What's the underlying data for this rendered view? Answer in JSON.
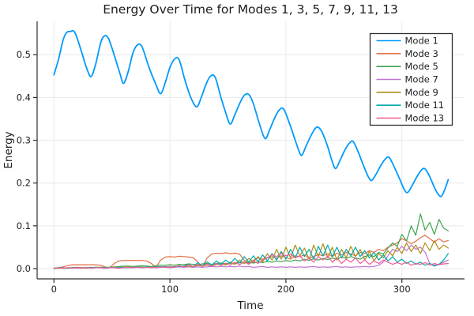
{
  "chart_data": {
    "type": "line",
    "title": "Energy Over Time for Modes 1, 3, 5, 7, 9, 11, 13",
    "xlabel": "Time",
    "ylabel": "Energy",
    "xlim": [
      -14.5,
      354
    ],
    "ylim": [
      -0.024,
      0.578
    ],
    "grid": true,
    "legend_position": "top-right",
    "xticks": [
      0,
      100,
      200,
      300
    ],
    "xtick_labels": [
      "0",
      "100",
      "200",
      "300"
    ],
    "yticks": [
      0.0,
      0.1,
      0.2,
      0.3,
      0.4,
      0.5
    ],
    "ytick_labels": [
      "0.0",
      "0.1",
      "0.2",
      "0.3",
      "0.4",
      "0.5"
    ],
    "series": [
      {
        "name": "Mode 1",
        "color": "#009AFA",
        "width": 1.8,
        "smooth": true,
        "points": [
          [
            0,
            0.453
          ],
          [
            4,
            0.49
          ],
          [
            8,
            0.535
          ],
          [
            11,
            0.552
          ],
          [
            14,
            0.554
          ],
          [
            18,
            0.552
          ],
          [
            24,
            0.505
          ],
          [
            28,
            0.47
          ],
          [
            32,
            0.449
          ],
          [
            36,
            0.478
          ],
          [
            40,
            0.525
          ],
          [
            43,
            0.543
          ],
          [
            47,
            0.538
          ],
          [
            53,
            0.49
          ],
          [
            57,
            0.455
          ],
          [
            60,
            0.433
          ],
          [
            64,
            0.46
          ],
          [
            68,
            0.503
          ],
          [
            72,
            0.523
          ],
          [
            76,
            0.518
          ],
          [
            82,
            0.47
          ],
          [
            88,
            0.43
          ],
          [
            92,
            0.409
          ],
          [
            96,
            0.435
          ],
          [
            100,
            0.47
          ],
          [
            104,
            0.49
          ],
          [
            108,
            0.488
          ],
          [
            113,
            0.44
          ],
          [
            118,
            0.4
          ],
          [
            123,
            0.378
          ],
          [
            127,
            0.4
          ],
          [
            131,
            0.43
          ],
          [
            135,
            0.45
          ],
          [
            139,
            0.447
          ],
          [
            144,
            0.4
          ],
          [
            148,
            0.365
          ],
          [
            152,
            0.338
          ],
          [
            156,
            0.36
          ],
          [
            160,
            0.385
          ],
          [
            164,
            0.405
          ],
          [
            168,
            0.407
          ],
          [
            172,
            0.385
          ],
          [
            177,
            0.34
          ],
          [
            182,
            0.304
          ],
          [
            186,
            0.325
          ],
          [
            190,
            0.35
          ],
          [
            194,
            0.37
          ],
          [
            198,
            0.373
          ],
          [
            203,
            0.34
          ],
          [
            208,
            0.3
          ],
          [
            212,
            0.27
          ],
          [
            214,
            0.266
          ],
          [
            218,
            0.29
          ],
          [
            223,
            0.318
          ],
          [
            227,
            0.331
          ],
          [
            231,
            0.32
          ],
          [
            236,
            0.285
          ],
          [
            240,
            0.25
          ],
          [
            243,
            0.234
          ],
          [
            247,
            0.255
          ],
          [
            251,
            0.278
          ],
          [
            255,
            0.294
          ],
          [
            258,
            0.297
          ],
          [
            262,
            0.275
          ],
          [
            267,
            0.24
          ],
          [
            271,
            0.215
          ],
          [
            274,
            0.206
          ],
          [
            278,
            0.222
          ],
          [
            282,
            0.242
          ],
          [
            286,
            0.257
          ],
          [
            289,
            0.26
          ],
          [
            293,
            0.24
          ],
          [
            298,
            0.21
          ],
          [
            302,
            0.185
          ],
          [
            305,
            0.178
          ],
          [
            309,
            0.195
          ],
          [
            313,
            0.215
          ],
          [
            317,
            0.231
          ],
          [
            320,
            0.233
          ],
          [
            324,
            0.215
          ],
          [
            328,
            0.19
          ],
          [
            331,
            0.175
          ],
          [
            334,
            0.169
          ],
          [
            337,
            0.185
          ],
          [
            340,
            0.208
          ]
        ]
      },
      {
        "name": "Mode 3",
        "color": "#E36F47",
        "width": 1.2,
        "smooth": false,
        "t0": 0,
        "dt": 4,
        "values": [
          0.001,
          0.002,
          0.004,
          0.007,
          0.009,
          0.009,
          0.009,
          0.009,
          0.009,
          0.009,
          0.008,
          0.004,
          0.002,
          0.012,
          0.018,
          0.019,
          0.019,
          0.019,
          0.019,
          0.019,
          0.018,
          0.012,
          0.003,
          0.02,
          0.027,
          0.028,
          0.027,
          0.029,
          0.028,
          0.027,
          0.026,
          0.015,
          0.004,
          0.025,
          0.034,
          0.036,
          0.035,
          0.037,
          0.035,
          0.036,
          0.034,
          0.02,
          0.012,
          0.02,
          0.025,
          0.022,
          0.026,
          0.028,
          0.024,
          0.03,
          0.026,
          0.022,
          0.03,
          0.028,
          0.032,
          0.025,
          0.028,
          0.033,
          0.03,
          0.035,
          0.028,
          0.036,
          0.032,
          0.038,
          0.034,
          0.03,
          0.038,
          0.035,
          0.042,
          0.038,
          0.045,
          0.042,
          0.05,
          0.055,
          0.06,
          0.07,
          0.065,
          0.058,
          0.064,
          0.072,
          0.078,
          0.07,
          0.062,
          0.07,
          0.062,
          0.066
        ]
      },
      {
        "name": "Mode 5",
        "color": "#3DA44E",
        "width": 1.2,
        "smooth": false,
        "t0": 0,
        "dt": 4,
        "values": [
          0.0,
          0.001,
          0.001,
          0.001,
          0.002,
          0.002,
          0.002,
          0.001,
          0.002,
          0.003,
          0.003,
          0.002,
          0.003,
          0.004,
          0.005,
          0.006,
          0.006,
          0.005,
          0.006,
          0.007,
          0.006,
          0.005,
          0.007,
          0.008,
          0.008,
          0.009,
          0.008,
          0.01,
          0.009,
          0.011,
          0.01,
          0.009,
          0.011,
          0.012,
          0.01,
          0.012,
          0.013,
          0.011,
          0.013,
          0.012,
          0.014,
          0.013,
          0.015,
          0.013,
          0.016,
          0.014,
          0.017,
          0.015,
          0.018,
          0.016,
          0.019,
          0.017,
          0.02,
          0.018,
          0.022,
          0.019,
          0.023,
          0.02,
          0.024,
          0.021,
          0.025,
          0.022,
          0.027,
          0.024,
          0.028,
          0.025,
          0.022,
          0.028,
          0.032,
          0.028,
          0.038,
          0.034,
          0.048,
          0.06,
          0.052,
          0.08,
          0.065,
          0.1,
          0.078,
          0.128,
          0.09,
          0.108,
          0.08,
          0.115,
          0.095,
          0.088
        ]
      },
      {
        "name": "Mode 7",
        "color": "#C371D2",
        "width": 1.2,
        "smooth": false,
        "t0": 0,
        "dt": 4,
        "values": [
          0.001,
          0.001,
          0.002,
          0.001,
          0.002,
          0.001,
          0.002,
          0.002,
          0.001,
          0.002,
          0.002,
          0.001,
          0.002,
          0.002,
          0.003,
          0.002,
          0.003,
          0.002,
          0.003,
          0.002,
          0.003,
          0.003,
          0.002,
          0.003,
          0.003,
          0.002,
          0.003,
          0.004,
          0.003,
          0.004,
          0.003,
          0.004,
          0.003,
          0.004,
          0.005,
          0.004,
          0.005,
          0.004,
          0.005,
          0.004,
          0.006,
          0.004,
          0.005,
          0.003,
          0.004,
          0.005,
          0.003,
          0.004,
          0.003,
          0.004,
          0.003,
          0.004,
          0.003,
          0.004,
          0.003,
          0.004,
          0.005,
          0.003,
          0.004,
          0.003,
          0.004,
          0.005,
          0.003,
          0.004,
          0.003,
          0.004,
          0.004,
          0.005,
          0.004,
          0.005,
          0.008,
          0.015,
          0.03,
          0.045,
          0.04,
          0.052,
          0.042,
          0.055,
          0.045,
          0.05,
          0.038,
          0.012,
          0.008,
          0.01,
          0.015,
          0.02
        ]
      },
      {
        "name": "Mode 9",
        "color": "#AC8E18",
        "width": 1.2,
        "smooth": false,
        "t0": 0,
        "dt": 4,
        "values": [
          0.001,
          0.002,
          0.001,
          0.002,
          0.002,
          0.003,
          0.002,
          0.002,
          0.003,
          0.002,
          0.003,
          0.003,
          0.002,
          0.003,
          0.004,
          0.003,
          0.004,
          0.003,
          0.004,
          0.004,
          0.003,
          0.004,
          0.005,
          0.004,
          0.005,
          0.004,
          0.005,
          0.006,
          0.005,
          0.006,
          0.005,
          0.007,
          0.006,
          0.008,
          0.006,
          0.009,
          0.012,
          0.008,
          0.015,
          0.01,
          0.02,
          0.012,
          0.024,
          0.015,
          0.028,
          0.016,
          0.035,
          0.02,
          0.045,
          0.022,
          0.05,
          0.025,
          0.055,
          0.03,
          0.048,
          0.022,
          0.055,
          0.028,
          0.058,
          0.025,
          0.05,
          0.02,
          0.045,
          0.025,
          0.052,
          0.028,
          0.045,
          0.02,
          0.04,
          0.018,
          0.035,
          0.025,
          0.042,
          0.03,
          0.05,
          0.035,
          0.06,
          0.04,
          0.055,
          0.035,
          0.06,
          0.042,
          0.065,
          0.045,
          0.055,
          0.048
        ]
      },
      {
        "name": "Mode 11",
        "color": "#00AAAE",
        "width": 1.2,
        "smooth": false,
        "t0": 0,
        "dt": 4,
        "values": [
          0.001,
          0.001,
          0.002,
          0.001,
          0.002,
          0.002,
          0.001,
          0.002,
          0.002,
          0.003,
          0.002,
          0.002,
          0.003,
          0.002,
          0.003,
          0.003,
          0.002,
          0.003,
          0.004,
          0.003,
          0.004,
          0.003,
          0.004,
          0.005,
          0.004,
          0.005,
          0.004,
          0.005,
          0.006,
          0.01,
          0.004,
          0.014,
          0.006,
          0.016,
          0.008,
          0.018,
          0.01,
          0.02,
          0.012,
          0.024,
          0.013,
          0.028,
          0.015,
          0.03,
          0.016,
          0.032,
          0.018,
          0.035,
          0.02,
          0.04,
          0.022,
          0.045,
          0.025,
          0.05,
          0.028,
          0.045,
          0.022,
          0.052,
          0.03,
          0.055,
          0.028,
          0.05,
          0.025,
          0.045,
          0.03,
          0.05,
          0.028,
          0.042,
          0.025,
          0.038,
          0.02,
          0.032,
          0.018,
          0.028,
          0.015,
          0.022,
          0.012,
          0.018,
          0.01,
          0.015,
          0.008,
          0.012,
          0.006,
          0.01,
          0.02,
          0.035
        ]
      },
      {
        "name": "Mode 13",
        "color": "#ED5E93",
        "width": 1.2,
        "smooth": false,
        "t0": 0,
        "dt": 4,
        "values": [
          0.001,
          0.001,
          0.001,
          0.002,
          0.001,
          0.002,
          0.001,
          0.002,
          0.001,
          0.002,
          0.002,
          0.001,
          0.002,
          0.002,
          0.001,
          0.002,
          0.003,
          0.002,
          0.003,
          0.002,
          0.003,
          0.002,
          0.003,
          0.004,
          0.003,
          0.005,
          0.003,
          0.007,
          0.004,
          0.009,
          0.005,
          0.01,
          0.006,
          0.011,
          0.005,
          0.012,
          0.007,
          0.013,
          0.008,
          0.015,
          0.009,
          0.016,
          0.01,
          0.018,
          0.012,
          0.02,
          0.025,
          0.032,
          0.028,
          0.035,
          0.03,
          0.034,
          0.025,
          0.03,
          0.018,
          0.025,
          0.015,
          0.028,
          0.02,
          0.03,
          0.015,
          0.025,
          0.012,
          0.022,
          0.015,
          0.025,
          0.012,
          0.02,
          0.01,
          0.018,
          0.012,
          0.02,
          0.015,
          0.01,
          0.014,
          0.01,
          0.015,
          0.008,
          0.012,
          0.01,
          0.014,
          0.008,
          0.012,
          0.009,
          0.011,
          0.012
        ]
      }
    ]
  },
  "style": {
    "axis_color": "#2e2e2e",
    "grid_color": "#e9e9e9",
    "text_color": "#1c1c1c",
    "legend_border_color": "#2e2e2e",
    "legend_bg": "#ffffff"
  },
  "legend": {
    "items": [
      "Mode 1",
      "Mode 3",
      "Mode 5",
      "Mode 7",
      "Mode 9",
      "Mode 11",
      "Mode 13"
    ]
  }
}
